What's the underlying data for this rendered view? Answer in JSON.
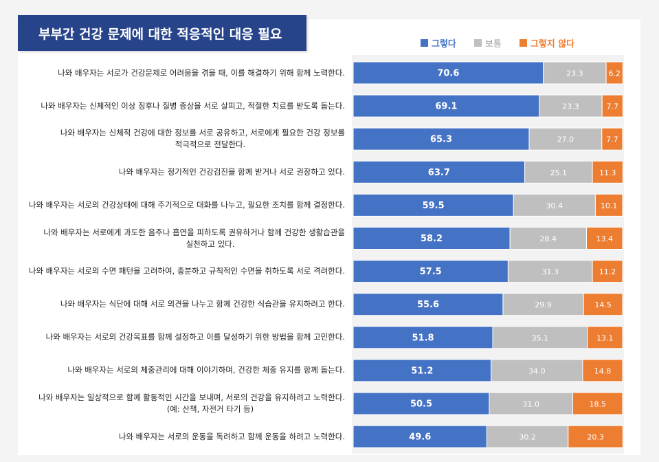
{
  "title": "부부간 건강 문제에 대한 적응적인 대응 필요",
  "colors": {
    "agree": "#4472c4",
    "neutral": "#bfbfbf",
    "disagree": "#ed7d31",
    "title_bg": "#27448b"
  },
  "chart_data": {
    "type": "bar",
    "orientation": "horizontal",
    "stacked": true,
    "xlim": [
      0,
      100
    ],
    "legend_position": "top-right",
    "categories": [
      "나와 배우자는 서로가 건강문제로 어려움을 겪을 때, 이를 해결하기 위해 함께 노력한다.",
      "나와 배우자는 신체적인 이상 징후나 질병 증상을 서로 살피고, 적절한 치료를 받도록 돕는다.",
      "나와 배우자는 신체적 건강에 대한 정보를 서로 공유하고, 서로에게 필요한 건강 정보를 적극적으로 전달한다.",
      "나와 배우자는 정기적인 건강검진을 함께 받거나 서로 권장하고 있다.",
      "나와 배우자는 서로의 건강상태에 대해 주기적으로 대화를 나누고, 필요한 조치를 함께 결정한다.",
      "나와 배우자는 서로에게 과도한 음주나 흡연을 피하도록 권유하거나 함께 건강한 생활습관을 실천하고 있다.",
      "나와 배우자는 서로의 수면 패턴을 고려하여, 충분하고 규칙적인 수면을 취하도록 서로 격려한다.",
      "나와 배우자는 식단에 대해 서로 의견을 나누고 함께 건강한 식습관을 유지하려고 한다.",
      "나와 배우자는 서로의 건강목표를 함께 설정하고 이를 달성하기 위한 방법을 함께 고민한다.",
      "나와 배우자는 서로의 체중관리에 대해 이야기하며, 건강한 체중 유지를 함께 돕는다.",
      "나와 배우자는 일상적으로 함께 활동적인 시간을 보내며, 서로의 건강을 유지하려고 노력한다. (예: 산책, 자전거 타기 등)",
      "나와 배우자는 서로의 운동을 독려하고 함께 운동을 하려고 노력한다."
    ],
    "labels_line1": [
      "나와 배우자는 서로가 건강문제로 어려움을 겪을 때, 이를 해결하기 위해 함께 노력한다.",
      "나와 배우자는 신체적인 이상 징후나 질병 증상을 서로 살피고, 적절한 치료를 받도록 돕는다.",
      "나와 배우자는 신체적 건강에 대한 정보를 서로 공유하고, 서로에게 필요한 건강 정보를",
      "나와 배우자는 정기적인 건강검진을 함께 받거나 서로 권장하고 있다.",
      "나와 배우자는 서로의 건강상태에 대해 주기적으로 대화를 나누고, 필요한 조치를 함께 결정한다.",
      "나와 배우자는 서로에게 과도한 음주나 흡연을 피하도록 권유하거나 함께 건강한 생활습관을",
      "나와 배우자는 서로의 수면 패턴을 고려하여, 충분하고 규칙적인 수면을 취하도록 서로 격려한다.",
      "나와 배우자는 식단에 대해 서로 의견을 나누고 함께 건강한 식습관을 유지하려고 한다.",
      "나와 배우자는 서로의 건강목표를 함께 설정하고 이를 달성하기 위한 방법을 함께 고민한다.",
      "나와 배우자는 서로의 체중관리에 대해 이야기하며, 건강한 체중 유지를 함께 돕는다.",
      "나와 배우자는 일상적으로 함께 활동적인 시간을 보내며, 서로의 건강을 유지하려고 노력한다.",
      "나와 배우자는 서로의 운동을 독려하고 함께 운동을 하려고 노력한다."
    ],
    "labels_line2": [
      "",
      "",
      "적극적으로 전달한다.",
      "",
      "",
      "실천하고 있다.",
      "",
      "",
      "",
      "",
      "(예: 산책, 자전거 타기 등)",
      ""
    ],
    "series": [
      {
        "name": "그렇다",
        "color": "#4472c4",
        "values": [
          70.6,
          69.1,
          65.3,
          63.7,
          59.5,
          58.2,
          57.5,
          55.6,
          51.8,
          51.2,
          50.5,
          49.6
        ]
      },
      {
        "name": "보통",
        "color": "#bfbfbf",
        "values": [
          23.3,
          23.3,
          27.0,
          25.1,
          30.4,
          28.4,
          31.3,
          29.9,
          35.1,
          34.0,
          31.0,
          30.2
        ]
      },
      {
        "name": "그렇지 않다",
        "color": "#ed7d31",
        "values": [
          6.2,
          7.7,
          7.7,
          11.3,
          10.1,
          13.4,
          11.2,
          14.5,
          13.1,
          14.8,
          18.5,
          20.3
        ]
      }
    ]
  }
}
